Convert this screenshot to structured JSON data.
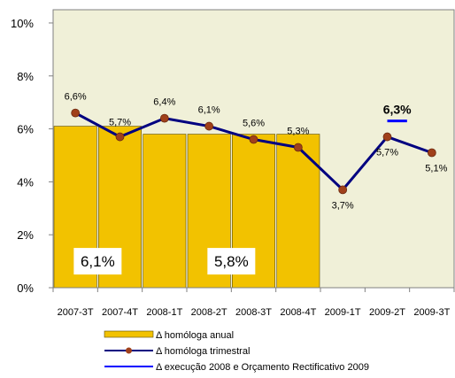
{
  "chart_data": {
    "type": "bar+line",
    "categories": [
      "2007-3T",
      "2007-4T",
      "2008-1T",
      "2008-2T",
      "2008-3T",
      "2008-4T",
      "2009-1T",
      "2009-2T",
      "2009-3T"
    ],
    "y_ticks": [
      "0%",
      "2%",
      "4%",
      "6%",
      "8%",
      "10%"
    ],
    "ylim": [
      0,
      10.5
    ],
    "bar_series": {
      "name": "Δ homóloga anual",
      "values": [
        6.1,
        6.1,
        5.8,
        5.8,
        5.8,
        5.8,
        null,
        null,
        null
      ],
      "color": "#f2c200",
      "group_labels": [
        {
          "text": "6,1%",
          "from": 0,
          "to": 1
        },
        {
          "text": "5,8%",
          "from": 2,
          "to": 5
        }
      ]
    },
    "line_series": {
      "name": "Δ homóloga trimestral",
      "values": [
        6.6,
        5.7,
        6.4,
        6.1,
        5.6,
        5.3,
        3.7,
        5.7,
        5.1
      ],
      "labels": [
        "6,6%",
        "5,7%",
        "6,4%",
        "6,1%",
        "5,6%",
        "5,3%",
        "3,7%",
        "5,7%",
        "5,1%"
      ],
      "color": "#000080",
      "marker_color": "#a0401a"
    },
    "target_series": {
      "name": "Δ execução 2008 e Orçamento Rectificativo 2009",
      "value": 6.3,
      "label": "6,3%",
      "from": 7,
      "to": 8,
      "color": "#0000ff"
    },
    "plot_background": "#f0f0d8",
    "grid": false,
    "legend_position": "bottom"
  }
}
